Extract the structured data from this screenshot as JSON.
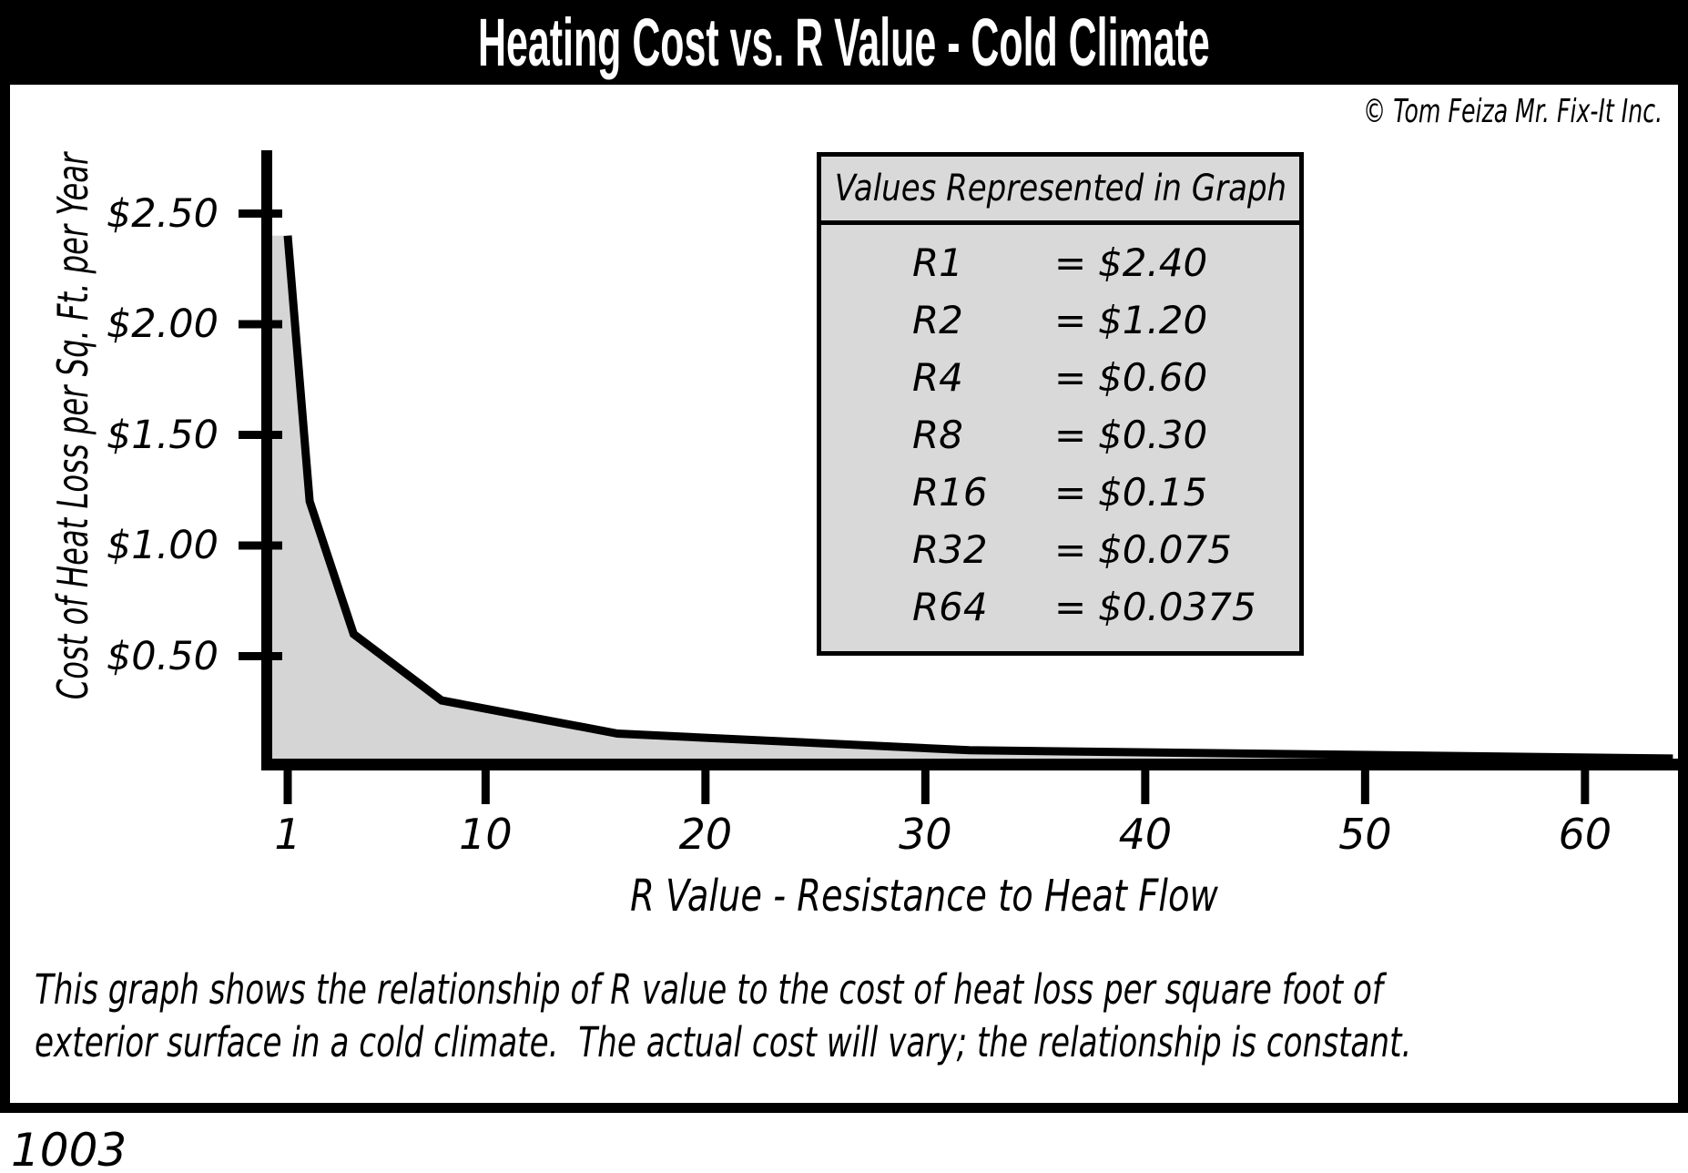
{
  "title": "Heating Cost vs. R Value - Cold Climate",
  "copyright": "© Tom Feiza Mr. Fix-It Inc.",
  "figure_number": "1003",
  "caption": {
    "line1": "This graph shows the relationship of R value to the cost of heat loss per square foot of",
    "line2": "exterior surface in a cold climate.  The actual cost will vary; the relationship is constant."
  },
  "legend": {
    "title": "Values Represented in Graph",
    "rows": [
      {
        "label": "R1",
        "eq": "=",
        "value": "$2.40"
      },
      {
        "label": "R2",
        "eq": "=",
        "value": "$1.20"
      },
      {
        "label": "R4",
        "eq": "=",
        "value": "$0.60"
      },
      {
        "label": "R8",
        "eq": "=",
        "value": "$0.30"
      },
      {
        "label": "R16",
        "eq": "=",
        "value": "$0.15"
      },
      {
        "label": "R32",
        "eq": "=",
        "value": "$0.075"
      },
      {
        "label": "R64",
        "eq": "=",
        "value": "$0.0375"
      }
    ]
  },
  "chart_data": {
    "type": "area",
    "title": "Heating Cost vs. R Value - Cold Climate",
    "xlabel": "R Value - Resistance to Heat Flow",
    "ylabel": "Cost of Heat Loss per Sq. Ft. per Year",
    "x": [
      1,
      2,
      4,
      8,
      16,
      32,
      64
    ],
    "y": [
      2.4,
      1.2,
      0.6,
      0.3,
      0.15,
      0.075,
      0.0375
    ],
    "xlim": [
      1,
      64
    ],
    "ylim": [
      0,
      2.85
    ],
    "x_ticks": [
      {
        "value": 1,
        "label": "1"
      },
      {
        "value": 10,
        "label": "10"
      },
      {
        "value": 20,
        "label": "20"
      },
      {
        "value": 30,
        "label": "30"
      },
      {
        "value": 40,
        "label": "40"
      },
      {
        "value": 50,
        "label": "50"
      },
      {
        "value": 60,
        "label": "60"
      }
    ],
    "y_ticks": [
      {
        "value": 2.5,
        "label": "$2.50"
      },
      {
        "value": 2.0,
        "label": "$2.00"
      },
      {
        "value": 1.5,
        "label": "$1.50"
      },
      {
        "value": 1.0,
        "label": "$1.00"
      },
      {
        "value": 0.5,
        "label": "$0.50"
      }
    ],
    "grid": false,
    "legend_position": "upper right",
    "line_color": "#000000",
    "fill_color": "#d5d5d5",
    "axis_color": "#000000"
  },
  "colors": {
    "title_bar_bg": "#000000",
    "title_text": "#ffffff",
    "legend_bg": "#d9d9d9",
    "page_bg": "#ffffff"
  }
}
